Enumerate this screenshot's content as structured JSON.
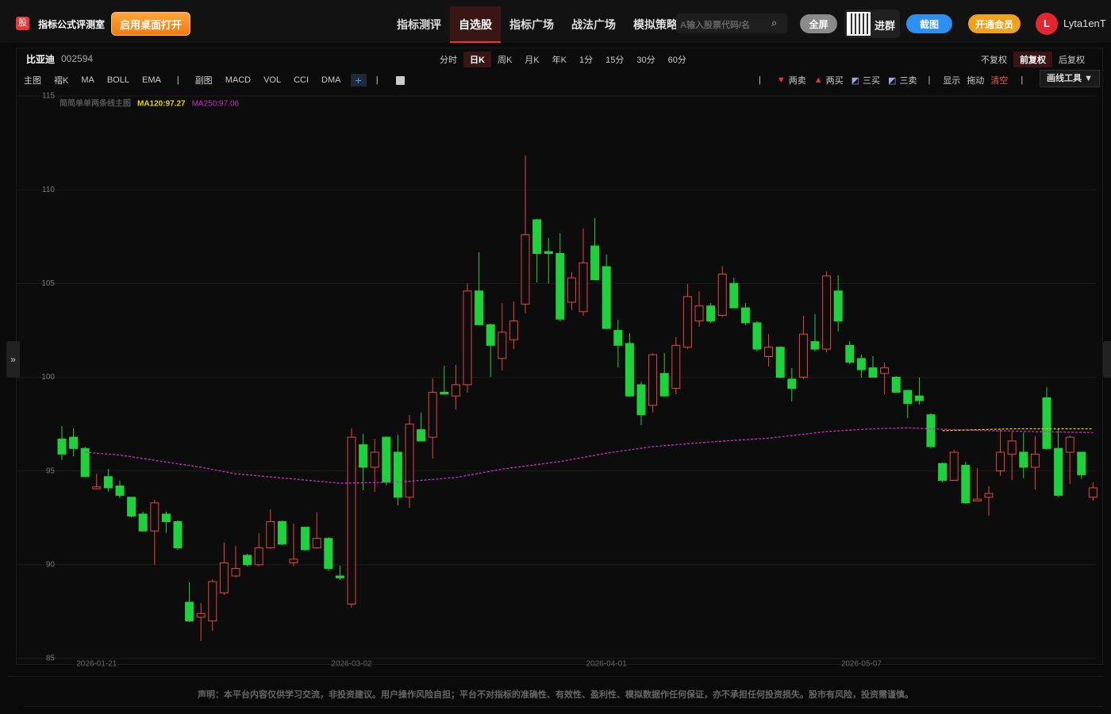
{
  "header": {
    "logo": "股",
    "title": "指标公式评测室",
    "open_button": "启用桌面打开",
    "nav": [
      "指标测评",
      "自选股",
      "指标广场",
      "战法广场",
      "模拟策略"
    ],
    "nav_active": 1,
    "search_placeholder": "A输入股票代码/名",
    "search_icon": "⌕",
    "fullscreen": "全屏",
    "group": "进群",
    "screenshot": "截图",
    "member": "开通会员",
    "avatar": "L",
    "username": "Lyta1enT"
  },
  "toolbar": {
    "stock_name": "比亚迪",
    "stock_code": "002594",
    "periods": [
      "分时",
      "日K",
      "周K",
      "月K",
      "年K",
      "1分",
      "15分",
      "30分",
      "60分"
    ],
    "period_active": 1,
    "adjust": [
      "不复权",
      "前复权",
      "后复权"
    ],
    "adjust_active": 1,
    "main_label": "主图",
    "main_indicators": [
      "褶K",
      "MA",
      "BOLL",
      "EMA"
    ],
    "sub_label": "副图",
    "sub_indicators": [
      "MACD",
      "VOL",
      "CCI",
      "DMA"
    ],
    "add": "+",
    "signals": [
      "两卖",
      "两买",
      "三买",
      "三卖"
    ],
    "actions": [
      "显示",
      "拖动",
      "清空"
    ],
    "draw_tools": "画线工具 ▼"
  },
  "chart_data": {
    "type": "candlestick",
    "indicator_label": "简简单单两条线主图",
    "categories": [
      null,
      null,
      null,
      "2026-01-21",
      null,
      null,
      null,
      null,
      null,
      null,
      null,
      null,
      null,
      null,
      null,
      null,
      null,
      null,
      null,
      null,
      null,
      null,
      null,
      null,
      null,
      "2026-03-02",
      null,
      null,
      null,
      null,
      null,
      null,
      null,
      null,
      null,
      null,
      null,
      null,
      null,
      null,
      null,
      null,
      null,
      null,
      null,
      null,
      null,
      "2026-04-01",
      null,
      null,
      null,
      null,
      null,
      null,
      null,
      null,
      null,
      null,
      null,
      null,
      null,
      null,
      null,
      null,
      null,
      null,
      null,
      null,
      null,
      "2026-05-07",
      null,
      null,
      null,
      null,
      null,
      null,
      null,
      null,
      null,
      null,
      null,
      null,
      null,
      null,
      null,
      null,
      null,
      null,
      null,
      null
    ],
    "open": [
      96.7,
      96.8,
      96.2,
      94.05,
      94.7,
      94.2,
      93.6,
      92.7,
      91.8,
      92.7,
      92.3,
      88.0,
      87.2,
      87.0,
      88.5,
      89.4,
      90.5,
      90.0,
      90.9,
      92.3,
      90.1,
      92.0,
      90.9,
      91.4,
      89.4,
      87.9,
      96.4,
      95.2,
      96.8,
      96.0,
      93.6,
      97.2,
      96.8,
      99.2,
      99.0,
      99.6,
      104.6,
      102.8,
      101.0,
      102.0,
      103.9,
      108.4,
      106.7,
      106.6,
      104.0,
      103.5,
      107.0,
      105.9,
      102.5,
      101.8,
      99.6,
      98.5,
      100.2,
      99.4,
      101.6,
      103.0,
      103.8,
      103.3,
      105.0,
      103.7,
      102.9,
      101.1,
      101.6,
      99.9,
      100.0,
      101.9,
      101.5,
      104.6,
      101.7,
      101.0,
      100.5,
      100.2,
      100.0,
      99.3,
      99.0,
      98.0,
      95.4,
      94.5,
      95.3,
      93.4,
      93.6,
      95.0,
      95.9,
      96.0,
      95.2,
      98.9,
      96.2,
      96.0,
      96.0,
      93.6
    ],
    "high": [
      97.4,
      97.27,
      96.3,
      94.86,
      95.11,
      94.48,
      93.6,
      92.83,
      93.46,
      92.83,
      92.36,
      89.06,
      87.96,
      89.23,
      91.18,
      91.0,
      90.59,
      91.69,
      92.96,
      92.36,
      92.19,
      92.0,
      92.79,
      91.47,
      89.96,
      97.27,
      96.98,
      96.72,
      96.85,
      96.93,
      97.99,
      98.12,
      99.94,
      100.62,
      100.66,
      105.0,
      106.67,
      102.86,
      103.96,
      104.04,
      111.83,
      108.44,
      107.43,
      107.68,
      105.61,
      107.94,
      108.49,
      106.54,
      103.07,
      102.35,
      99.77,
      101.29,
      101.29,
      102.14,
      104.97,
      104.59,
      103.96,
      105.91,
      105.31,
      103.96,
      102.99,
      102.31,
      101.65,
      100.49,
      103.28,
      103.37,
      105.65,
      105.44,
      101.93,
      101.21,
      101.12,
      100.78,
      100.07,
      99.3,
      99.98,
      98.08,
      95.45,
      96.13,
      95.5,
      95.16,
      94.18,
      97.27,
      97.1,
      97.06,
      96.85,
      99.47,
      97.27,
      96.89,
      96.0,
      94.39
    ],
    "low": [
      95.58,
      95.79,
      94.7,
      94.01,
      93.89,
      93.55,
      92.53,
      91.77,
      89.99,
      91.69,
      90.8,
      86.95,
      85.93,
      86.48,
      88.39,
      89.32,
      89.91,
      89.91,
      90.84,
      91.05,
      89.91,
      90.76,
      90.84,
      89.66,
      89.19,
      87.71,
      93.97,
      93.89,
      94.23,
      93.17,
      93.04,
      96.6,
      95.66,
      99.1,
      98.29,
      99.18,
      102.77,
      100.02,
      100.36,
      101.5,
      103.41,
      105.06,
      105.0,
      102.99,
      103.58,
      103.28,
      105.2,
      102.56,
      100.53,
      98.97,
      97.44,
      98.12,
      98.97,
      99.09,
      101.5,
      102.69,
      102.9,
      103.2,
      103.7,
      102.77,
      101.38,
      100.57,
      99.94,
      98.71,
      99.9,
      101.38,
      101.33,
      102.44,
      100.7,
      99.98,
      99.98,
      99.09,
      99.18,
      97.82,
      98.54,
      96.21,
      94.39,
      94.48,
      93.25,
      93.38,
      92.62,
      94.73,
      94.52,
      94.61,
      94.01,
      96.13,
      93.63,
      94.31,
      94.56,
      93.42
    ],
    "close": [
      95.9,
      96.2,
      94.7,
      94.15,
      94.1,
      93.7,
      92.6,
      91.8,
      93.3,
      92.3,
      90.9,
      87.0,
      87.4,
      89.1,
      90.1,
      89.8,
      90.0,
      90.9,
      92.3,
      91.1,
      90.3,
      90.8,
      91.4,
      89.8,
      89.3,
      96.8,
      95.2,
      96.0,
      94.4,
      93.6,
      97.5,
      96.6,
      99.2,
      99.1,
      99.6,
      104.6,
      102.8,
      101.7,
      102.4,
      103.0,
      107.6,
      106.6,
      106.6,
      103.1,
      105.3,
      106.1,
      105.2,
      102.6,
      101.7,
      99.0,
      98.0,
      101.2,
      99.0,
      101.7,
      104.3,
      103.8,
      103.0,
      105.5,
      103.7,
      102.9,
      101.5,
      101.6,
      100.0,
      99.4,
      102.3,
      101.5,
      105.4,
      103.0,
      100.8,
      100.4,
      100.0,
      100.5,
      99.2,
      98.6,
      98.75,
      96.3,
      94.5,
      96.0,
      93.3,
      93.5,
      93.8,
      96.0,
      96.6,
      95.2,
      95.9,
      96.2,
      93.7,
      96.8,
      94.8,
      94.1
    ],
    "up_color": "#e5463f",
    "down_color": "#1fd13c",
    "overlays": [
      {
        "name": "MA120:97.27",
        "color": "#e8d400",
        "x": [
          76,
          82,
          89
        ],
        "values": [
          97.15,
          97.25,
          97.25
        ]
      },
      {
        "name": "MA250:97.06",
        "color": "#c52fc5",
        "x": [
          2,
          5,
          12,
          15,
          24,
          29,
          34,
          38,
          43,
          47,
          51,
          56,
          61,
          66,
          70,
          73,
          77,
          80,
          84,
          89
        ],
        "values": [
          96.0,
          95.85,
          95.2,
          94.85,
          94.35,
          94.4,
          94.65,
          95.1,
          95.5,
          95.95,
          96.3,
          96.55,
          96.75,
          97.1,
          97.25,
          97.3,
          97.2,
          97.15,
          97.1,
          97.05
        ]
      }
    ],
    "ylim": [
      85,
      115
    ],
    "yticks": [
      85,
      90,
      95,
      100,
      105,
      110,
      115
    ],
    "grid": true
  },
  "footer": {
    "disclaimer": "声明：本平台内容仅供学习交流，非投资建议。用户操作风险自担；平台不对指标的准确性、有效性、盈利性、模拟数据作任何保证，亦不承担任何投资损失。股市有风险，投资需谨慎。"
  }
}
